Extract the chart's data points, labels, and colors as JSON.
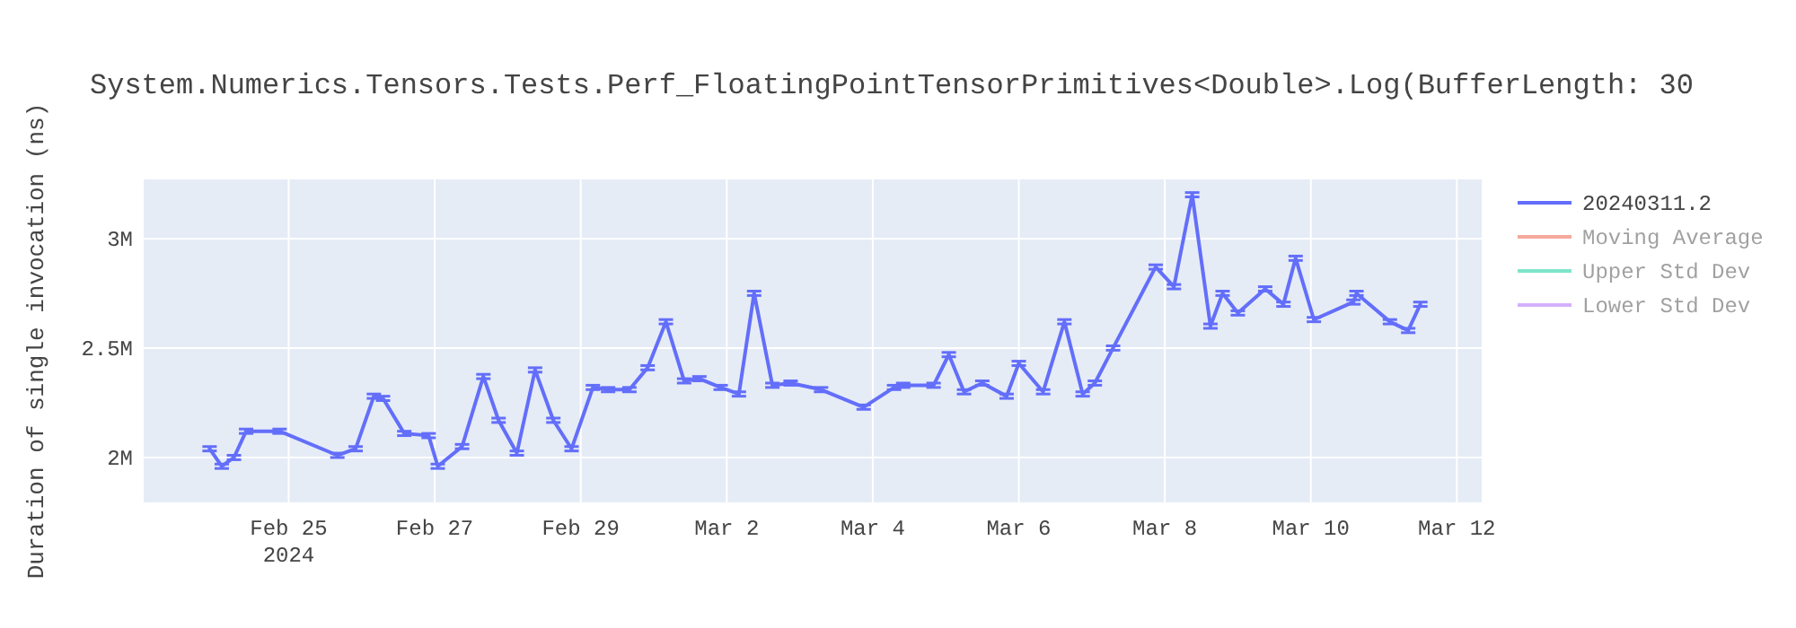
{
  "chart_data": {
    "type": "line",
    "title": "System.Numerics.Tensors.Tests.Perf_FloatingPointTensorPrimitives<Double>.Log(BufferLength: 30",
    "ylabel": "Duration of single invocation (ns)",
    "x": [
      "2024-02-23T22:00",
      "2024-02-24T02:00",
      "2024-02-24T06:00",
      "2024-02-24T10:00",
      "2024-02-24T21:00",
      "2024-02-25T16:00",
      "2024-02-25T22:00",
      "2024-02-26T04:00",
      "2024-02-26T07:00",
      "2024-02-26T14:00",
      "2024-02-26T22:00",
      "2024-02-27T01:00",
      "2024-02-27T09:00",
      "2024-02-27T16:00",
      "2024-02-27T21:00",
      "2024-02-28T03:00",
      "2024-02-28T09:00",
      "2024-02-28T15:00",
      "2024-02-28T21:00",
      "2024-02-29T04:00",
      "2024-02-29T09:00",
      "2024-02-29T16:00",
      "2024-02-29T22:00",
      "2024-03-01T04:00",
      "2024-03-01T10:00",
      "2024-03-01T15:00",
      "2024-03-01T22:00",
      "2024-03-02T04:00",
      "2024-03-02T09:00",
      "2024-03-02T15:00",
      "2024-03-02T21:00",
      "2024-03-03T07:00",
      "2024-03-03T21:00",
      "2024-03-04T07:00",
      "2024-03-04T10:00",
      "2024-03-04T20:00",
      "2024-03-05T01:00",
      "2024-03-05T06:00",
      "2024-03-05T12:00",
      "2024-03-05T20:00",
      "2024-03-06T00:00",
      "2024-03-06T08:00",
      "2024-03-06T15:00",
      "2024-03-06T21:00",
      "2024-03-07T01:00",
      "2024-03-07T07:00",
      "2024-03-07T21:00",
      "2024-03-08T03:00",
      "2024-03-08T09:00",
      "2024-03-08T15:00",
      "2024-03-08T19:00",
      "2024-03-09T00:00",
      "2024-03-09T09:00",
      "2024-03-09T15:00",
      "2024-03-09T19:00",
      "2024-03-10T01:00",
      "2024-03-10T14:00",
      "2024-03-10T15:00",
      "2024-03-11T02:00",
      "2024-03-11T08:00",
      "2024-03-11T12:00"
    ],
    "series": [
      {
        "name": "20240311.2",
        "color": "#636efa",
        "values": [
          2040000,
          1960000,
          2000000,
          2120000,
          2120000,
          2010000,
          2040000,
          2280000,
          2270000,
          2110000,
          2100000,
          1960000,
          2050000,
          2370000,
          2170000,
          2020000,
          2400000,
          2170000,
          2040000,
          2320000,
          2310000,
          2310000,
          2410000,
          2620000,
          2350000,
          2360000,
          2320000,
          2290000,
          2750000,
          2330000,
          2340000,
          2310000,
          2230000,
          2320000,
          2330000,
          2330000,
          2470000,
          2300000,
          2340000,
          2280000,
          2430000,
          2300000,
          2620000,
          2290000,
          2340000,
          2500000,
          2870000,
          2780000,
          3200000,
          2600000,
          2750000,
          2660000,
          2770000,
          2700000,
          2910000,
          2630000,
          2710000,
          2750000,
          2620000,
          2580000,
          2700000
        ],
        "errors": [
          10000,
          10000,
          10000,
          10000,
          10000,
          10000,
          10000,
          10000,
          10000,
          10000,
          10000,
          10000,
          10000,
          10000,
          10000,
          10000,
          10000,
          10000,
          10000,
          10000,
          10000,
          10000,
          10000,
          10000,
          10000,
          10000,
          10000,
          10000,
          10000,
          10000,
          10000,
          10000,
          10000,
          10000,
          10000,
          10000,
          10000,
          10000,
          10000,
          10000,
          10000,
          10000,
          10000,
          10000,
          10000,
          10000,
          10000,
          10000,
          10000,
          10000,
          10000,
          10000,
          10000,
          10000,
          10000,
          10000,
          10000,
          10000,
          10000,
          10000,
          10000
        ]
      },
      {
        "name": "Moving Average",
        "color": "#ef553b",
        "values": [
          null,
          null,
          null,
          null,
          null,
          null,
          null,
          null,
          null,
          null,
          null,
          null,
          null,
          null,
          null,
          null,
          null,
          null,
          null,
          null,
          null,
          null,
          null,
          null,
          null,
          null,
          null,
          null,
          null,
          null,
          null,
          null,
          null,
          null,
          null,
          null,
          null,
          null,
          null,
          null,
          null,
          null,
          null,
          null,
          null,
          null,
          null,
          null,
          null,
          null,
          null,
          null,
          null,
          null,
          null,
          null,
          null,
          null,
          null,
          null,
          null
        ]
      },
      {
        "name": "Upper Std Dev",
        "color": "#00cc96",
        "values": [
          null,
          null,
          null,
          null,
          null,
          null,
          null,
          null,
          null,
          null,
          null,
          null,
          null,
          null,
          null,
          null,
          null,
          null,
          null,
          null,
          null,
          null,
          null,
          null,
          null,
          null,
          null,
          null,
          null,
          null,
          null,
          null,
          null,
          null,
          null,
          null,
          null,
          null,
          null,
          null,
          null,
          null,
          null,
          null,
          null,
          null,
          null,
          null,
          null,
          null,
          null,
          null,
          null,
          null,
          null,
          null,
          null,
          null,
          null,
          null,
          null
        ]
      },
      {
        "name": "Lower Std Dev",
        "color": "#ab63fa",
        "values": [
          null,
          null,
          null,
          null,
          null,
          null,
          null,
          null,
          null,
          null,
          null,
          null,
          null,
          null,
          null,
          null,
          null,
          null,
          null,
          null,
          null,
          null,
          null,
          null,
          null,
          null,
          null,
          null,
          null,
          null,
          null,
          null,
          null,
          null,
          null,
          null,
          null,
          null,
          null,
          null,
          null,
          null,
          null,
          null,
          null,
          null,
          null,
          null,
          null,
          null,
          null,
          null,
          null,
          null,
          null,
          null,
          null,
          null,
          null,
          null,
          null
        ]
      }
    ],
    "xlim": [
      "2024-02-23T00:20",
      "2024-03-12T08:10"
    ],
    "xticks": [
      {
        "value": "2024-02-25",
        "label": "Feb 25\n2024"
      },
      {
        "value": "2024-02-27",
        "label": "Feb 27"
      },
      {
        "value": "2024-02-29",
        "label": "Feb 29"
      },
      {
        "value": "2024-03-02",
        "label": "Mar 2"
      },
      {
        "value": "2024-03-04",
        "label": "Mar 4"
      },
      {
        "value": "2024-03-06",
        "label": "Mar 6"
      },
      {
        "value": "2024-03-08",
        "label": "Mar 8"
      },
      {
        "value": "2024-03-10",
        "label": "Mar 10"
      },
      {
        "value": "2024-03-12",
        "label": "Mar 12"
      }
    ],
    "ylim": [
      1795000,
      3270000
    ],
    "yticks": [
      {
        "value": 2000000,
        "label": "2M"
      },
      {
        "value": 2500000,
        "label": "2.5M"
      },
      {
        "value": 3000000,
        "label": "3M"
      }
    ],
    "grid": true,
    "legend": "right",
    "marker": "none",
    "line_style": "solid"
  }
}
